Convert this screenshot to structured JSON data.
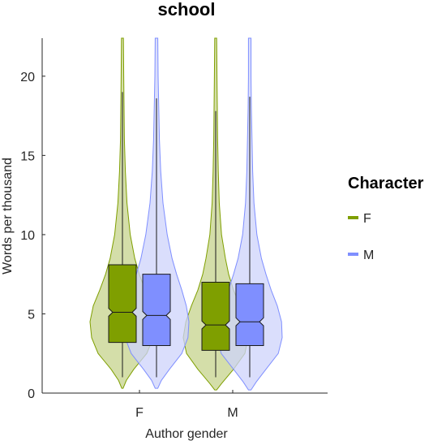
{
  "chart_data": {
    "type": "violin",
    "title": "school",
    "xlabel": "Author gender",
    "ylabel": "Words per thousand",
    "categories": [
      "F",
      "M"
    ],
    "ylim": [
      0,
      22.4
    ],
    "yticks": [
      0,
      5,
      10,
      15,
      20
    ],
    "grid": false,
    "legend": {
      "title": "Character",
      "placement": "right",
      "entries": [
        {
          "label": "F",
          "color": "#7f9f00"
        },
        {
          "label": "M",
          "color": "#7f8fff"
        }
      ]
    },
    "series": [
      {
        "name": "F",
        "color": "#7f9f00",
        "violin_fill": "#c5d38c",
        "box_fill": "#7f9f00",
        "groups": [
          {
            "category": "F",
            "q1": 3.2,
            "median": 5.1,
            "q3": 8.1,
            "notch_low": 4.85,
            "notch_high": 5.35,
            "whisker_low": 1.0,
            "whisker_high": 19.0,
            "density": [
              [
                0.3,
                0.02
              ],
              [
                0.8,
                0.12
              ],
              [
                1.5,
                0.35
              ],
              [
                2.5,
                0.75
              ],
              [
                3.5,
                0.95
              ],
              [
                4.5,
                1.0
              ],
              [
                5.5,
                0.9
              ],
              [
                6.5,
                0.7
              ],
              [
                7.5,
                0.52
              ],
              [
                8.5,
                0.38
              ],
              [
                10,
                0.24
              ],
              [
                12,
                0.14
              ],
              [
                14,
                0.09
              ],
              [
                16,
                0.06
              ],
              [
                18,
                0.05
              ],
              [
                20,
                0.04
              ],
              [
                22.4,
                0.03
              ]
            ]
          },
          {
            "category": "M",
            "q1": 2.7,
            "median": 4.3,
            "q3": 7.0,
            "notch_low": 4.05,
            "notch_high": 4.55,
            "whisker_low": 1.0,
            "whisker_high": 17.8,
            "density": [
              [
                0.2,
                0.03
              ],
              [
                0.6,
                0.18
              ],
              [
                1.5,
                0.55
              ],
              [
                2.5,
                0.9
              ],
              [
                3.5,
                1.0
              ],
              [
                4.5,
                0.92
              ],
              [
                5.5,
                0.75
              ],
              [
                6.5,
                0.55
              ],
              [
                7.5,
                0.4
              ],
              [
                8.5,
                0.3
              ],
              [
                10,
                0.18
              ],
              [
                12,
                0.11
              ],
              [
                14,
                0.08
              ],
              [
                16,
                0.06
              ],
              [
                18,
                0.05
              ],
              [
                20,
                0.04
              ],
              [
                22.4,
                0.03
              ]
            ]
          }
        ]
      },
      {
        "name": "M",
        "color": "#7f8fff",
        "violin_fill": "#cdd3fb",
        "box_fill": "#7f8fff",
        "groups": [
          {
            "category": "F",
            "q1": 3.0,
            "median": 4.9,
            "q3": 7.5,
            "notch_low": 4.65,
            "notch_high": 5.15,
            "whisker_low": 1.0,
            "whisker_high": 18.6,
            "density": [
              [
                0.3,
                0.04
              ],
              [
                0.8,
                0.15
              ],
              [
                1.5,
                0.4
              ],
              [
                2.5,
                0.78
              ],
              [
                3.5,
                0.97
              ],
              [
                4.5,
                1.0
              ],
              [
                5.5,
                0.92
              ],
              [
                6.5,
                0.78
              ],
              [
                7.5,
                0.62
              ],
              [
                8.5,
                0.48
              ],
              [
                10,
                0.33
              ],
              [
                12,
                0.2
              ],
              [
                14,
                0.13
              ],
              [
                16,
                0.09
              ],
              [
                18,
                0.07
              ],
              [
                20,
                0.05
              ],
              [
                22.4,
                0.04
              ]
            ]
          },
          {
            "category": "M",
            "q1": 3.0,
            "median": 4.5,
            "q3": 6.9,
            "notch_low": 4.25,
            "notch_high": 4.75,
            "whisker_low": 1.0,
            "whisker_high": 18.7,
            "density": [
              [
                0.2,
                0.04
              ],
              [
                0.7,
                0.2
              ],
              [
                1.5,
                0.5
              ],
              [
                2.5,
                0.88
              ],
              [
                3.5,
                1.0
              ],
              [
                4.5,
                0.98
              ],
              [
                5.5,
                0.85
              ],
              [
                6.5,
                0.66
              ],
              [
                7.5,
                0.5
              ],
              [
                8.5,
                0.36
              ],
              [
                10,
                0.22
              ],
              [
                12,
                0.13
              ],
              [
                14,
                0.09
              ],
              [
                16,
                0.07
              ],
              [
                18,
                0.05
              ],
              [
                20,
                0.04
              ],
              [
                22.4,
                0.04
              ]
            ]
          }
        ]
      }
    ]
  }
}
